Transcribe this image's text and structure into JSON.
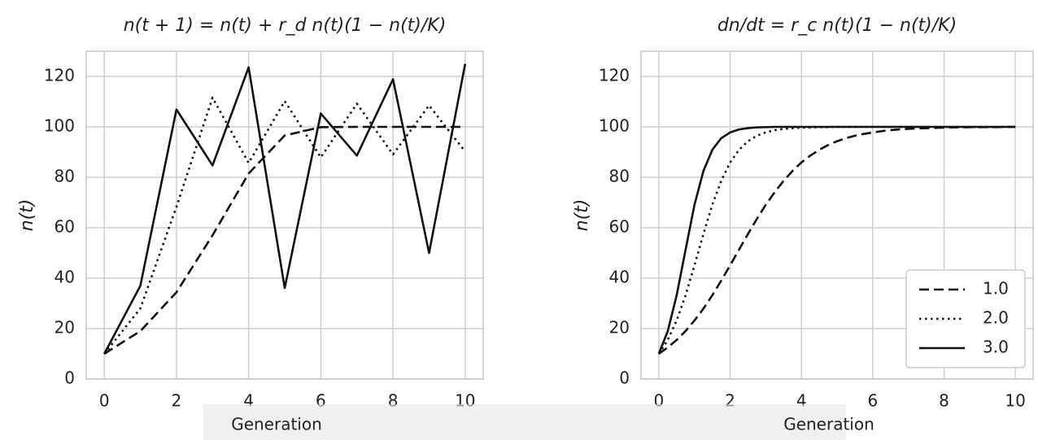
{
  "chart_data": [
    {
      "type": "line",
      "title": "n(t + 1) = n(t) + r_d n(t)(1 − n(t)/K)",
      "xlabel": "Generation",
      "ylabel": "n(t)",
      "x": [
        0,
        1,
        2,
        3,
        4,
        5,
        6,
        7,
        8,
        9,
        10
      ],
      "series": [
        {
          "name": "1.0",
          "color": "#111111",
          "linestyle": "dashed",
          "values": [
            10,
            19,
            34.4,
            57,
            81.5,
            96.6,
            99.9,
            100,
            100,
            100,
            100
          ]
        },
        {
          "name": "2.0",
          "color": "#111111",
          "linestyle": "dotted",
          "values": [
            10,
            28,
            68.3,
            111.6,
            85.7,
            110.2,
            87.9,
            109.2,
            89.1,
            108.5,
            90.2
          ]
        },
        {
          "name": "3.0",
          "color": "#111111",
          "linestyle": "solid",
          "values": [
            10,
            37,
            106.9,
            84.7,
            123.6,
            36.1,
            105.3,
            88.6,
            118.9,
            50,
            125
          ]
        }
      ],
      "xlim": [
        -0.5,
        10.5
      ],
      "ylim": [
        0,
        130
      ],
      "xticks": [
        0,
        2,
        4,
        6,
        8,
        10
      ],
      "yticks": [
        0,
        20,
        40,
        60,
        80,
        100,
        120
      ],
      "grid": true,
      "legend": false
    },
    {
      "type": "line",
      "title": "dn/dt = r_c n(t)(1 − n(t)/K)",
      "xlabel": "Generation",
      "ylabel": "n(t)",
      "x": [
        0,
        0.25,
        0.5,
        0.75,
        1,
        1.25,
        1.5,
        1.75,
        2,
        2.25,
        2.5,
        2.75,
        3,
        3.25,
        3.5,
        3.75,
        4,
        4.25,
        4.5,
        4.75,
        5,
        5.25,
        5.5,
        5.75,
        6,
        6.25,
        6.5,
        6.75,
        7,
        7.25,
        7.5,
        7.75,
        8,
        8.25,
        8.5,
        8.75,
        9,
        9.25,
        9.5,
        9.75,
        10
      ],
      "series": [
        {
          "name": "1.0",
          "color": "#111111",
          "linestyle": "dashed",
          "values": [
            10,
            12.5,
            15.5,
            19,
            23.2,
            27.9,
            33.2,
            39,
            45.1,
            51.3,
            57.5,
            63.5,
            69.1,
            74.1,
            78.6,
            82.5,
            85.9,
            88.6,
            90.9,
            92.8,
            94.3,
            95.5,
            96.5,
            97.2,
            97.8,
            98.3,
            98.7,
            99,
            99.2,
            99.4,
            99.5,
            99.6,
            99.7,
            99.8,
            99.8,
            99.9,
            99.9,
            99.9,
            99.9,
            100,
            100
          ]
        },
        {
          "name": "2.0",
          "color": "#111111",
          "linestyle": "dotted",
          "values": [
            10,
            15.5,
            23.2,
            33.2,
            45.1,
            57.5,
            69.1,
            78.6,
            85.9,
            90.9,
            94.3,
            96.5,
            97.8,
            98.7,
            99.2,
            99.5,
            99.7,
            99.8,
            99.9,
            99.9,
            100,
            100,
            100,
            100,
            100,
            100,
            100,
            100,
            100,
            100,
            100,
            100,
            100,
            100,
            100,
            100,
            100,
            100,
            100,
            100,
            100
          ]
        },
        {
          "name": "3.0",
          "color": "#111111",
          "linestyle": "solid",
          "values": [
            10,
            19,
            33.2,
            51.3,
            69.1,
            82.5,
            90.9,
            95.5,
            97.8,
            99,
            99.5,
            99.8,
            99.9,
            100,
            100,
            100,
            100,
            100,
            100,
            100,
            100,
            100,
            100,
            100,
            100,
            100,
            100,
            100,
            100,
            100,
            100,
            100,
            100,
            100,
            100,
            100,
            100,
            100,
            100,
            100,
            100
          ]
        }
      ],
      "xlim": [
        -0.5,
        10.5
      ],
      "ylim": [
        0,
        130
      ],
      "xticks": [
        0,
        2,
        4,
        6,
        8,
        10
      ],
      "yticks": [
        0,
        20,
        40,
        60,
        80,
        100,
        120
      ],
      "grid": true,
      "legend": "lower right"
    }
  ]
}
